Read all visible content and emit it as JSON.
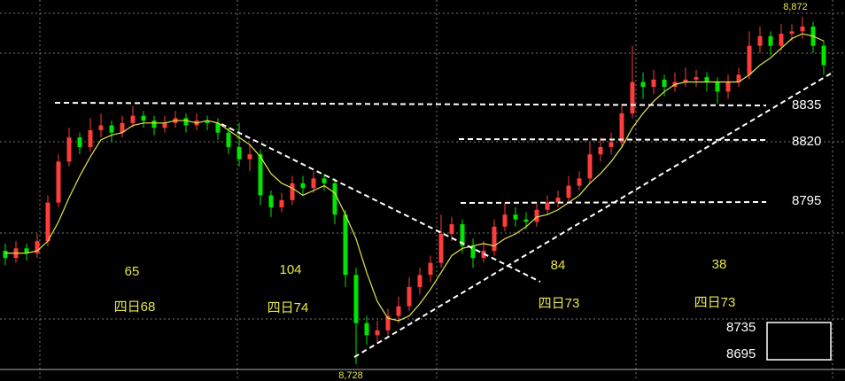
{
  "chart_data": {
    "type": "candlestick",
    "ylim": [
      8721,
      8879
    ],
    "up_color": "#ff3c3c",
    "down_color": "#00e600",
    "ma_color": "#e6e64c",
    "annotations": {
      "high": "8,872",
      "low": "8,728",
      "levels": [
        "8835",
        "8820",
        "8795"
      ],
      "counts": [
        "65",
        "104",
        "84",
        "38"
      ],
      "periods": [
        "四日68",
        "四日74",
        "四日73",
        "四日73"
      ],
      "box": [
        "8735",
        "8695"
      ]
    },
    "ohlc": [
      [
        8775,
        8778,
        8769,
        8772
      ],
      [
        8772,
        8779,
        8770,
        8776
      ],
      [
        8776,
        8778,
        8771,
        8774
      ],
      [
        8774,
        8782,
        8772,
        8779
      ],
      [
        8779,
        8798,
        8777,
        8795
      ],
      [
        8795,
        8815,
        8793,
        8812
      ],
      [
        8812,
        8826,
        8810,
        8822
      ],
      [
        8822,
        8824,
        8815,
        8818
      ],
      [
        8818,
        8830,
        8816,
        8825
      ],
      [
        8825,
        8832,
        8822,
        8827
      ],
      [
        8827,
        8829,
        8820,
        8824
      ],
      [
        8824,
        8831,
        8822,
        8828
      ],
      [
        8828,
        8835,
        8826,
        8831
      ],
      [
        8831,
        8833,
        8826,
        8829
      ],
      [
        8829,
        8831,
        8823,
        8826
      ],
      [
        8826,
        8831,
        8824,
        8828
      ],
      [
        8828,
        8833,
        8826,
        8830
      ],
      [
        8830,
        8832,
        8824,
        8827
      ],
      [
        8827,
        8832,
        8825,
        8829
      ],
      [
        8829,
        8831,
        8825,
        8828
      ],
      [
        8828,
        8830,
        8821,
        8824
      ],
      [
        8824,
        8826,
        8815,
        8818
      ],
      [
        8818,
        8828,
        8810,
        8813
      ],
      [
        8813,
        8819,
        8808,
        8815
      ],
      [
        8815,
        8817,
        8794,
        8798
      ],
      [
        8798,
        8800,
        8789,
        8793
      ],
      [
        8793,
        8799,
        8791,
        8796
      ],
      [
        8796,
        8806,
        8794,
        8803
      ],
      [
        8803,
        8806,
        8798,
        8801
      ],
      [
        8801,
        8808,
        8799,
        8805
      ],
      [
        8805,
        8807,
        8800,
        8803
      ],
      [
        8803,
        8805,
        8786,
        8790
      ],
      [
        8790,
        8792,
        8760,
        8765
      ],
      [
        8765,
        8768,
        8728,
        8745
      ],
      [
        8745,
        8748,
        8736,
        8740
      ],
      [
        8740,
        8746,
        8737,
        8742
      ],
      [
        8742,
        8751,
        8740,
        8748
      ],
      [
        8748,
        8756,
        8745,
        8752
      ],
      [
        8752,
        8764,
        8750,
        8760
      ],
      [
        8760,
        8768,
        8757,
        8765
      ],
      [
        8765,
        8773,
        8762,
        8770
      ],
      [
        8770,
        8790,
        8768,
        8782
      ],
      [
        8782,
        8789,
        8779,
        8786
      ],
      [
        8786,
        8788,
        8774,
        8777
      ],
      [
        8777,
        8780,
        8768,
        8772
      ],
      [
        8772,
        8779,
        8770,
        8775
      ],
      [
        8775,
        8788,
        8773,
        8785
      ],
      [
        8785,
        8795,
        8783,
        8790
      ],
      [
        8790,
        8793,
        8785,
        8788
      ],
      [
        8788,
        8791,
        8784,
        8787
      ],
      [
        8787,
        8795,
        8785,
        8792
      ],
      [
        8792,
        8798,
        8790,
        8795
      ],
      [
        8795,
        8800,
        8793,
        8797
      ],
      [
        8797,
        8806,
        8795,
        8802
      ],
      [
        8802,
        8808,
        8800,
        8805
      ],
      [
        8805,
        8820,
        8803,
        8815
      ],
      [
        8815,
        8822,
        8812,
        8818
      ],
      [
        8818,
        8824,
        8815,
        8820
      ],
      [
        8820,
        8836,
        8818,
        8832
      ],
      [
        8832,
        8860,
        8830,
        8845
      ],
      [
        8845,
        8849,
        8838,
        8843
      ],
      [
        8843,
        8850,
        8840,
        8846
      ],
      [
        8846,
        8848,
        8839,
        8843
      ],
      [
        8843,
        8849,
        8841,
        8845
      ],
      [
        8845,
        8851,
        8843,
        8846
      ],
      [
        8846,
        8850,
        8843,
        8847
      ],
      [
        8847,
        8849,
        8841,
        8845
      ],
      [
        8845,
        8847,
        8836,
        8841
      ],
      [
        8841,
        8848,
        8838,
        8845
      ],
      [
        8845,
        8851,
        8843,
        8848
      ],
      [
        8848,
        8866,
        8846,
        8860
      ],
      [
        8860,
        8868,
        8857,
        8864
      ],
      [
        8864,
        8866,
        8856,
        8860
      ],
      [
        8860,
        8869,
        8858,
        8865
      ],
      [
        8865,
        8869,
        8862,
        8866
      ],
      [
        8866,
        8872,
        8863,
        8868
      ],
      [
        8868,
        8870,
        8857,
        8860
      ],
      [
        8860,
        8862,
        8848,
        8852
      ]
    ],
    "ma": [
      8774,
      8774,
      8774,
      8775,
      8779,
      8787,
      8797,
      8806,
      8814,
      8821,
      8823,
      8824,
      8827,
      8828,
      8828,
      8828,
      8829,
      8829,
      8828,
      8829,
      8828,
      8825,
      8822,
      8819,
      8814,
      8807,
      8803,
      8801,
      8798,
      8800,
      8802,
      8799,
      8790,
      8780,
      8766,
      8754,
      8747,
      8746,
      8748,
      8753,
      8759,
      8766,
      8773,
      8776,
      8777,
      8778,
      8777,
      8780,
      8782,
      8785,
      8789,
      8790,
      8792,
      8795,
      8798,
      8803,
      8807,
      8812,
      8818,
      8826,
      8832,
      8837,
      8841,
      8844,
      8845,
      8845,
      8845,
      8845,
      8845,
      8845,
      8848,
      8852,
      8855,
      8859,
      8863,
      8865,
      8864,
      8862
    ]
  }
}
